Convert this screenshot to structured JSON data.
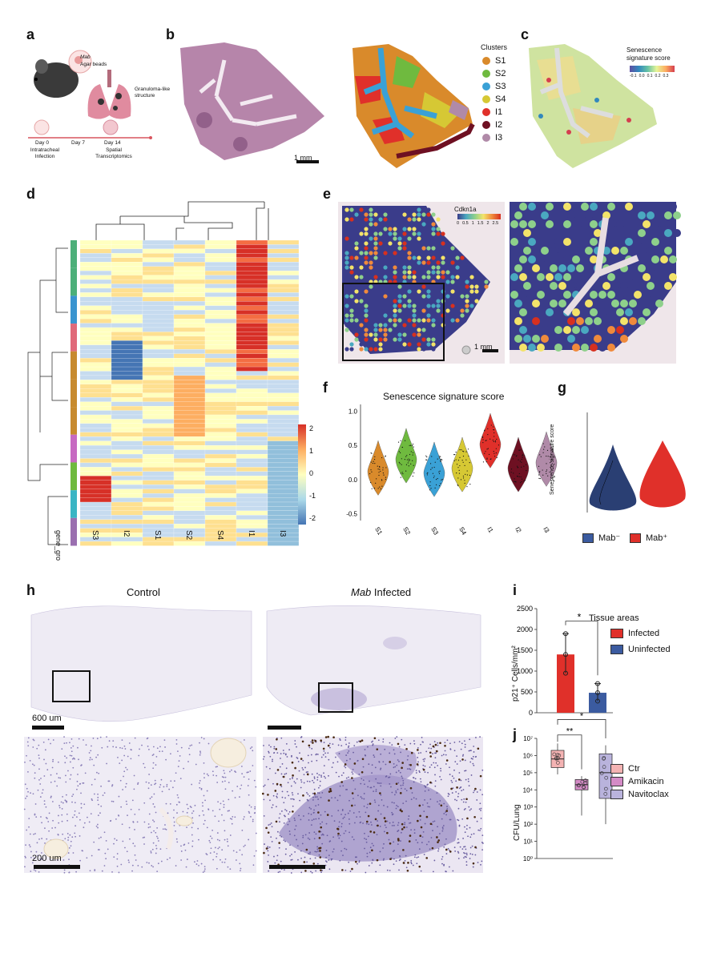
{
  "panels": {
    "a": {
      "label": "a",
      "mab": "Mab",
      "agar": "Agar beads",
      "granuloma": "Granuloma-like structure",
      "timeline": [
        {
          "day": "Day 0",
          "desc": "Intratracheal Infection"
        },
        {
          "day": "Day 7",
          "desc": ""
        },
        {
          "day": "Day 14",
          "desc": "Spatial Transcriptomics"
        }
      ]
    },
    "b": {
      "label": "b",
      "scalebar": "1 mm",
      "legend_title": "Clusters",
      "clusters": [
        {
          "name": "S1",
          "color": "#d98a2b"
        },
        {
          "name": "S2",
          "color": "#6fba3f"
        },
        {
          "name": "S3",
          "color": "#3aa1d6"
        },
        {
          "name": "S4",
          "color": "#d6c834"
        },
        {
          "name": "I1",
          "color": "#e0302a"
        },
        {
          "name": "I2",
          "color": "#6e1022"
        },
        {
          "name": "I3",
          "color": "#b08aa8"
        }
      ]
    },
    "c": {
      "label": "c",
      "title": "Senescence signature score",
      "ticks": [
        "-0.1",
        "0.0",
        "0.1",
        "0.2",
        "0.3"
      ]
    },
    "d": {
      "label": "d",
      "columns": [
        "S3",
        "I2",
        "S1",
        "S2",
        "S4",
        "I1",
        "I3"
      ],
      "row_annotation_label": "gene_gro",
      "colorbar_ticks": [
        "2",
        "1",
        "0",
        "-1",
        "-2"
      ]
    },
    "e": {
      "label": "e",
      "gene": "Cdkn1a",
      "ticks": [
        "0",
        "0.5",
        "1",
        "1.5",
        "2",
        "2.5"
      ],
      "scalebar": "1 mm"
    },
    "f": {
      "label": "f",
      "title": "Senescence signature score",
      "yticks": [
        "1.0",
        "0.5",
        "0.0",
        "-0.5"
      ]
    },
    "g": {
      "label": "g",
      "ylabel": "Senescence signature score",
      "legend": [
        {
          "name": "Mab⁻",
          "color": "#3b5ba0"
        },
        {
          "name": "Mab⁺",
          "color": "#e0302a"
        }
      ]
    },
    "h": {
      "label": "h",
      "control": "Control",
      "infected_italic": "Mab",
      "infected_rest": " Infected",
      "scale_top": "600 um",
      "scale_bottom": "200 um"
    },
    "i": {
      "label": "i",
      "ylabel": "p21⁺ Cells/mm²",
      "yticks": [
        "2500",
        "2000",
        "1500",
        "1000",
        "500",
        "0"
      ],
      "legend_title": "Tissue areas",
      "sig": "*",
      "legend": [
        {
          "name": "Infected",
          "color": "#e0302a"
        },
        {
          "name": "Uninfected",
          "color": "#3b5ba0"
        }
      ]
    },
    "j": {
      "label": "j",
      "ylabel": "CFU/Lung",
      "yticks": [
        "10⁷",
        "10⁶",
        "10⁵",
        "10⁴",
        "10³",
        "10²",
        "10¹",
        "10⁰"
      ],
      "sig1": "**",
      "sig2": "*",
      "legend": [
        {
          "name": "Ctr",
          "color": "#f4b3b3"
        },
        {
          "name": "Amikacin",
          "color": "#d48bc6"
        },
        {
          "name": "Navitoclax",
          "color": "#b9b3dc"
        }
      ]
    }
  },
  "chart_data": [
    {
      "type": "heatmap",
      "columns": [
        "S3",
        "I2",
        "S1",
        "S2",
        "S4",
        "I1",
        "I3"
      ],
      "colorbar_range": [
        -2,
        2
      ]
    },
    {
      "type": "violin",
      "title": "Senescence signature score",
      "categories": [
        "S1",
        "S2",
        "S3",
        "S4",
        "I1",
        "I2",
        "I3"
      ],
      "medians": [
        0.12,
        0.3,
        0.1,
        0.17,
        0.52,
        0.17,
        0.25
      ],
      "ylim": [
        -0.6,
        1.1
      ]
    },
    {
      "type": "bar",
      "categories": [
        "Infected",
        "Uninfected"
      ],
      "values": [
        1400,
        480
      ],
      "points": [
        [
          1900,
          1400,
          950
        ],
        [
          700,
          480,
          280
        ]
      ],
      "ylim": [
        0,
        2500
      ]
    },
    {
      "type": "box",
      "categories": [
        "Ctr",
        "Amikacin",
        "Navitoclax"
      ],
      "log_medians": [
        5.8,
        4.3,
        5.0
      ],
      "ylim_log": [
        0,
        7
      ]
    }
  ]
}
